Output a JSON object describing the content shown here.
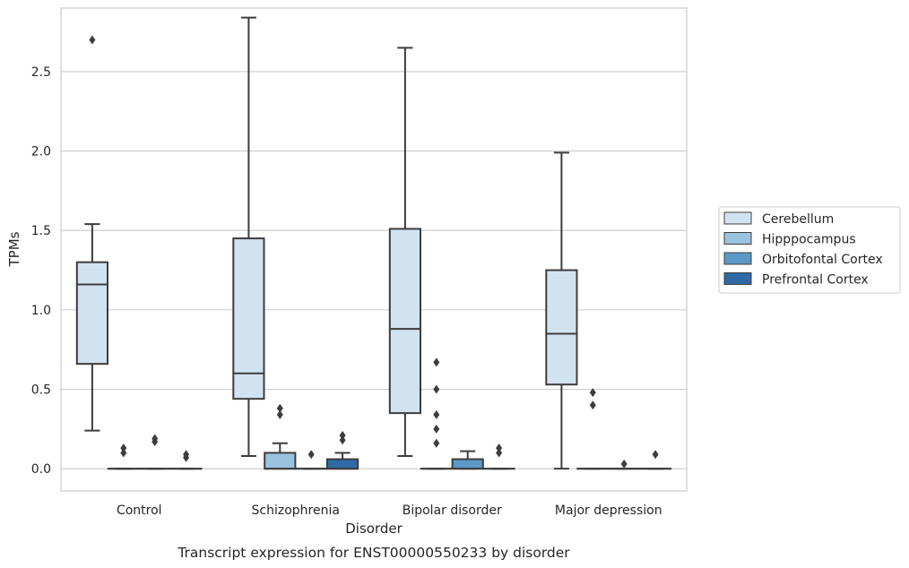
{
  "caption": "Transcript expression for ENST00000550233 by disorder",
  "chart_data": {
    "type": "box",
    "xlabel": "Disorder",
    "ylabel": "TPMs",
    "categories": [
      "Control",
      "Schizophrenia",
      "Bipolar disorder",
      "Major depression"
    ],
    "ylim": [
      -0.14,
      2.9
    ],
    "yticks": [
      0.0,
      0.5,
      1.0,
      1.5,
      2.0,
      2.5
    ],
    "ytick_labels": [
      "0.0",
      "0.5",
      "1.0",
      "1.5",
      "2.0",
      "2.5"
    ],
    "grid": "horizontal",
    "legend_position": "right",
    "series": [
      {
        "name": "Cerebellum",
        "color": "#d1e2f1",
        "boxes": [
          {
            "whislo": 0.24,
            "q1": 0.66,
            "med": 1.16,
            "q3": 1.3,
            "whishi": 1.54,
            "fliers": [
              2.7
            ]
          },
          {
            "whislo": 0.08,
            "q1": 0.44,
            "med": 0.6,
            "q3": 1.45,
            "whishi": 2.84,
            "fliers": []
          },
          {
            "whislo": 0.08,
            "q1": 0.35,
            "med": 0.88,
            "q3": 1.51,
            "whishi": 2.65,
            "fliers": []
          },
          {
            "whislo": 0.0,
            "q1": 0.53,
            "med": 0.85,
            "q3": 1.25,
            "whishi": 1.99,
            "fliers": []
          }
        ]
      },
      {
        "name": "Hipppocampus",
        "color": "#9ac3dd",
        "boxes": [
          {
            "whislo": 0.0,
            "q1": 0.0,
            "med": 0.0,
            "q3": 0.0,
            "whishi": 0.0,
            "fliers": [
              0.1,
              0.13
            ]
          },
          {
            "whislo": 0.0,
            "q1": 0.0,
            "med": 0.0,
            "q3": 0.1,
            "whishi": 0.16,
            "fliers": [
              0.34,
              0.38
            ]
          },
          {
            "whislo": 0.0,
            "q1": 0.0,
            "med": 0.0,
            "q3": 0.0,
            "whishi": 0.0,
            "fliers": [
              0.16,
              0.25,
              0.34,
              0.5,
              0.67
            ]
          },
          {
            "whislo": 0.0,
            "q1": 0.0,
            "med": 0.0,
            "q3": 0.0,
            "whishi": 0.0,
            "fliers": [
              0.4,
              0.48
            ]
          }
        ]
      },
      {
        "name": "Orbitofontal Cortex",
        "color": "#5b9ac8",
        "boxes": [
          {
            "whislo": 0.0,
            "q1": 0.0,
            "med": 0.0,
            "q3": 0.0,
            "whishi": 0.0,
            "fliers": [
              0.17,
              0.19
            ]
          },
          {
            "whislo": 0.0,
            "q1": 0.0,
            "med": 0.0,
            "q3": 0.0,
            "whishi": 0.0,
            "fliers": [
              0.09
            ]
          },
          {
            "whislo": 0.0,
            "q1": 0.0,
            "med": 0.0,
            "q3": 0.06,
            "whishi": 0.11,
            "fliers": []
          },
          {
            "whislo": 0.0,
            "q1": 0.0,
            "med": 0.0,
            "q3": 0.0,
            "whishi": 0.0,
            "fliers": [
              0.03
            ]
          }
        ]
      },
      {
        "name": "Prefrontal Cortex",
        "color": "#2d6aa6",
        "boxes": [
          {
            "whislo": 0.0,
            "q1": 0.0,
            "med": 0.0,
            "q3": 0.0,
            "whishi": 0.0,
            "fliers": [
              0.07,
              0.09
            ]
          },
          {
            "whislo": 0.0,
            "q1": 0.0,
            "med": 0.0,
            "q3": 0.06,
            "whishi": 0.1,
            "fliers": [
              0.18,
              0.21
            ]
          },
          {
            "whislo": 0.0,
            "q1": 0.0,
            "med": 0.0,
            "q3": 0.0,
            "whishi": 0.0,
            "fliers": [
              0.1,
              0.13
            ]
          },
          {
            "whislo": 0.0,
            "q1": 0.0,
            "med": 0.0,
            "q3": 0.0,
            "whishi": 0.0,
            "fliers": [
              0.09
            ]
          }
        ]
      }
    ]
  }
}
